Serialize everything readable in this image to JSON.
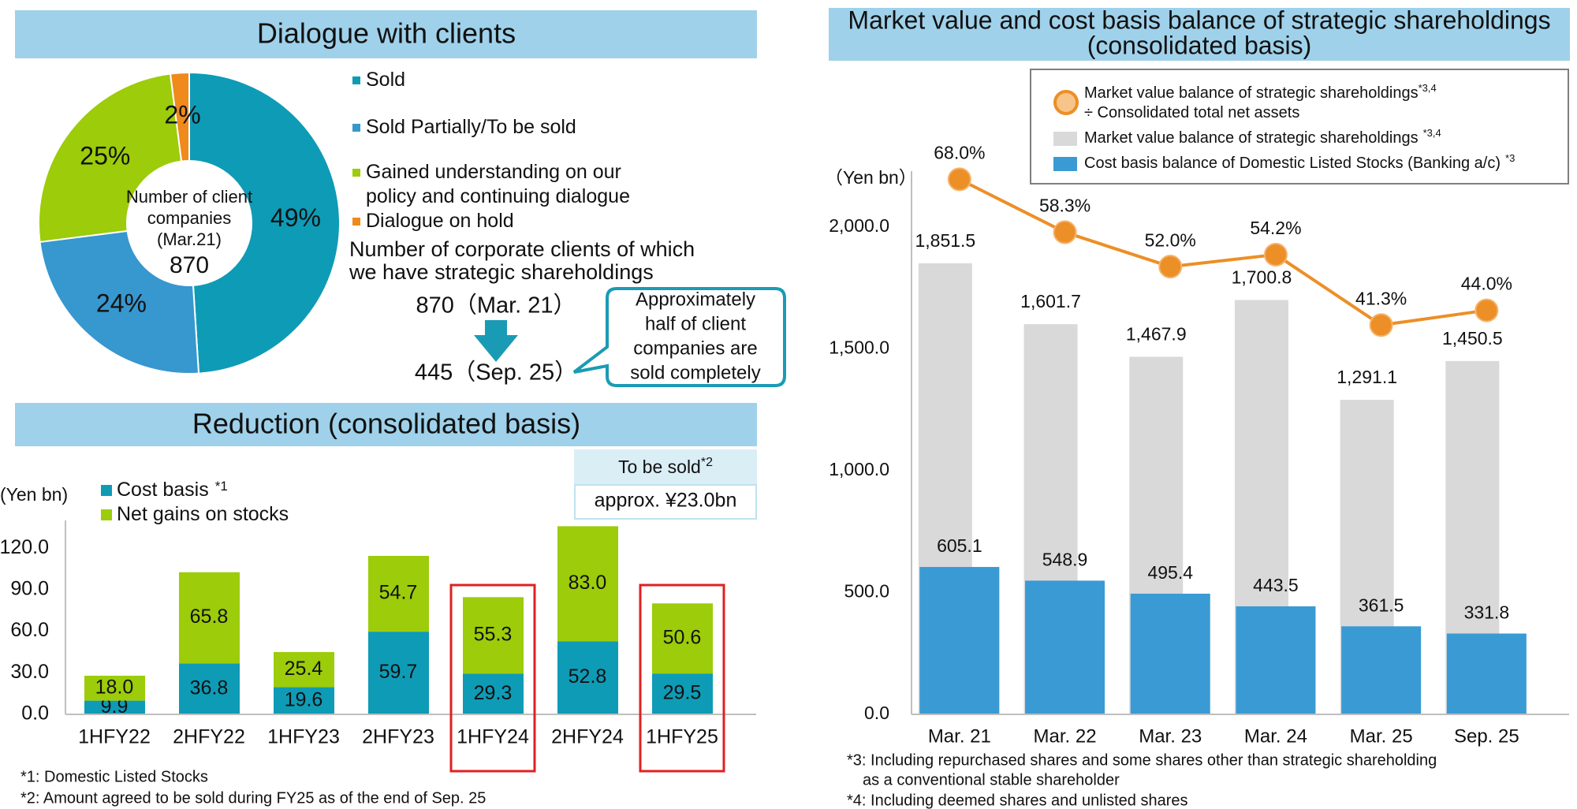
{
  "chart_data": [
    {
      "type": "pie",
      "title": "Dialogue with clients",
      "categories": [
        "Sold",
        "Sold Partially/To be sold",
        "Gained understanding on our policy and continuing dialogue",
        "Dialogue on hold"
      ],
      "values": [
        49,
        24,
        25,
        2
      ],
      "value_labels": [
        "49%",
        "24%",
        "25%",
        "2%"
      ],
      "colors": [
        "#0e9bb6",
        "#3797cf",
        "#9ccc0a",
        "#f08a1c"
      ],
      "donut": true,
      "center_label": [
        "Number of client",
        "companies",
        "(Mar.21)"
      ],
      "center_value": 870,
      "clients_label": [
        "Number of corporate clients of which",
        "we have strategic shareholdings"
      ],
      "clients_from": "870（Mar. 21）",
      "clients_to": "445（Sep. 25）",
      "callout": [
        "Approximately",
        "half of client",
        "companies are",
        "sold completely"
      ]
    },
    {
      "type": "bar",
      "stacked": true,
      "title": "Reduction (consolidated basis)",
      "y_label": "(Yen bn)",
      "categories": [
        "1HFY22",
        "2HFY22",
        "1HFY23",
        "2HFY23",
        "1HFY24",
        "2HFY24",
        "1HFY25"
      ],
      "series": [
        {
          "name": "Cost basis",
          "note": "*1",
          "color": "#0e9bb6",
          "values": [
            9.9,
            36.8,
            19.6,
            59.7,
            29.3,
            52.8,
            29.5
          ],
          "value_labels": [
            "9.9",
            "36.8",
            "19.6",
            "59.7",
            "29.3",
            "52.8",
            "29.5"
          ]
        },
        {
          "name": "Net gains on stocks",
          "color": "#9ccc0a",
          "values": [
            18.0,
            65.8,
            25.4,
            54.7,
            55.3,
            83.0,
            50.6
          ],
          "value_labels": [
            "18.0",
            "65.8",
            "25.4",
            "54.7",
            "55.3",
            "83.0",
            "50.6"
          ]
        }
      ],
      "ylim": [
        0,
        140
      ],
      "yticks": [
        {
          "value": 0,
          "label": "0.0"
        },
        {
          "value": 30,
          "label": "30.0"
        },
        {
          "value": 60,
          "label": "60.0"
        },
        {
          "value": 90,
          "label": "90.0"
        },
        {
          "value": 120,
          "label": "120.0"
        }
      ],
      "highlight": [
        4,
        6
      ],
      "box_title": "To be sold",
      "box_note": "*2",
      "box_value": "approx. ¥23.0bn",
      "notes": [
        "*1: Domestic Listed Stocks",
        "*2: Amount agreed to be sold during FY25 as of the end of Sep. 25"
      ]
    },
    {
      "type": "bar_line",
      "title": [
        "Market value and cost basis balance of strategic shareholdings",
        "(consolidated basis)"
      ],
      "y_label": "（Yen bn）",
      "categories": [
        "Mar. 21",
        "Mar. 22",
        "Mar. 23",
        "Mar. 24",
        "Mar. 25",
        "Sep. 25"
      ],
      "series": [
        {
          "name": "Market value balance of strategic shareholdings",
          "note": "*3,4",
          "name_cont": "÷ Consolidated total net assets",
          "type": "line",
          "axis": "y2",
          "color": "#ec8f27",
          "values": [
            68.0,
            58.3,
            52.0,
            54.2,
            41.3,
            44.0
          ],
          "value_labels": [
            "68.0%",
            "58.3%",
            "52.0%",
            "54.2%",
            "41.3%",
            "44.0%"
          ]
        },
        {
          "name": "Market value balance of strategic shareholdings",
          "note": "*3,4",
          "type": "bar",
          "color": "#d9d9d9",
          "values": [
            1851.5,
            1601.7,
            1467.9,
            1700.8,
            1291.1,
            1450.5
          ],
          "value_labels": [
            "1,851.5",
            "1,601.7",
            "1,467.9",
            "1,700.8",
            "1,291.1",
            "1,450.5"
          ]
        },
        {
          "name": "Cost basis balance of Domestic Listed Stocks (Banking a/c)",
          "note": "*3",
          "type": "bar",
          "color": "#3a9ad4",
          "values": [
            605.1,
            548.9,
            495.4,
            443.5,
            361.5,
            331.8
          ],
          "value_labels": [
            "605.1",
            "548.9",
            "495.4",
            "443.5",
            "361.5",
            "331.8"
          ]
        }
      ],
      "ylim": [
        0,
        2230
      ],
      "yticks": [
        {
          "value": 0,
          "label": "0.0"
        },
        {
          "value": 500,
          "label": "500.0"
        },
        {
          "value": 1000,
          "label": "1,000.0"
        },
        {
          "value": 1500,
          "label": "1,500.0"
        },
        {
          "value": 2000,
          "label": "2,000.0"
        }
      ],
      "y2lim": [
        -30,
        69.5
      ],
      "notes": [
        "*3: Including repurchased shares and some shares other than strategic shareholding",
        "as a conventional stable shareholder",
        "*4: Including deemed shares and unlisted shares"
      ]
    }
  ]
}
